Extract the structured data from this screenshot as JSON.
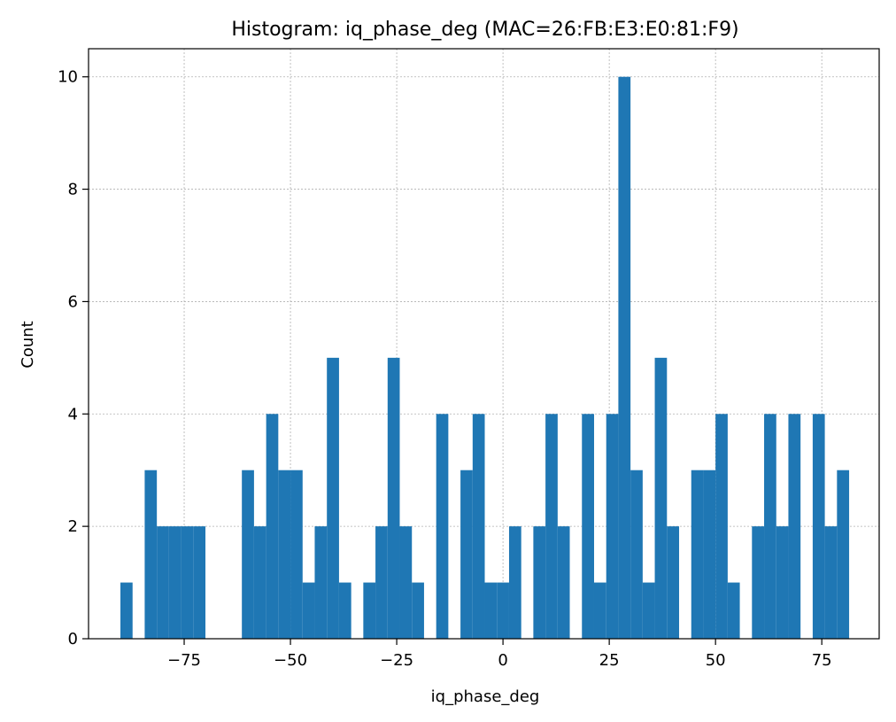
{
  "chart_data": {
    "type": "bar",
    "title": "Histogram: iq_phase_deg (MAC=26:FB:E3:E0:81:F9)",
    "xlabel": "iq_phase_deg",
    "ylabel": "Count",
    "xlim": [
      -97.5,
      88.5
    ],
    "ylim": [
      0,
      10.5
    ],
    "grid": true,
    "bar_color": "#1f77b4",
    "xticks": [
      -75,
      -50,
      -25,
      0,
      25,
      50,
      75
    ],
    "xtick_labels": [
      "−75",
      "−50",
      "−25",
      "0",
      "25",
      "50",
      "75"
    ],
    "yticks": [
      0,
      2,
      4,
      6,
      8,
      10
    ],
    "ytick_labels": [
      "0",
      "2",
      "4",
      "6",
      "8",
      "10"
    ],
    "bin_edges": [
      -90.0,
      -87.14,
      -84.29,
      -81.43,
      -78.57,
      -75.71,
      -72.86,
      -70.0,
      -67.14,
      -64.29,
      -61.43,
      -58.57,
      -55.71,
      -52.86,
      -50.0,
      -47.14,
      -44.29,
      -41.43,
      -38.57,
      -35.71,
      -32.86,
      -30.0,
      -27.14,
      -24.29,
      -21.43,
      -18.57,
      -15.71,
      -12.86,
      -10.0,
      -7.14,
      -4.29,
      -1.43,
      1.43,
      4.29,
      7.14,
      10.0,
      12.86,
      15.71,
      18.57,
      21.43,
      24.29,
      27.14,
      30.0,
      32.86,
      35.71,
      38.57,
      41.43,
      44.29,
      47.14,
      50.0,
      52.86,
      55.71,
      58.57,
      61.43,
      64.29,
      67.14,
      70.0,
      72.86,
      75.71,
      78.57,
      81.43
    ],
    "counts": [
      1,
      0,
      3,
      2,
      2,
      2,
      2,
      0,
      0,
      0,
      3,
      2,
      4,
      3,
      3,
      1,
      2,
      5,
      1,
      0,
      1,
      2,
      5,
      2,
      1,
      0,
      4,
      0,
      3,
      4,
      1,
      1,
      2,
      0,
      2,
      4,
      2,
      0,
      4,
      1,
      4,
      10,
      3,
      1,
      5,
      2,
      0,
      3,
      3,
      4,
      1,
      0,
      2,
      4,
      2,
      4,
      0,
      4,
      2,
      3
    ]
  }
}
